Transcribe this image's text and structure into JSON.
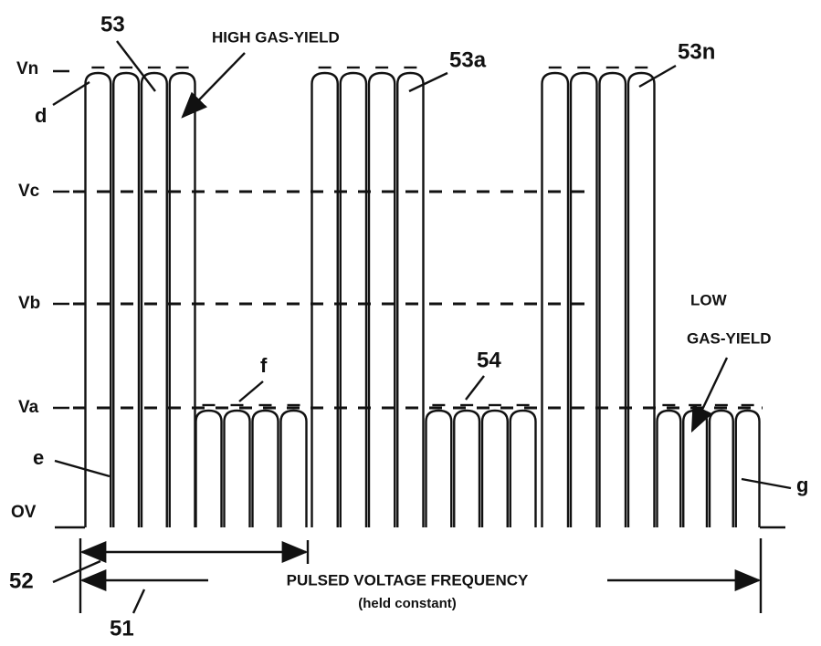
{
  "levels": [
    "Vn",
    "Vc",
    "Vb",
    "Va",
    "OV"
  ],
  "callouts": {
    "n53": "53",
    "n53a": "53a",
    "n53n": "53n",
    "n54": "54",
    "n52": "52",
    "n51": "51",
    "d": "d",
    "e": "e",
    "f": "f",
    "g": "g"
  },
  "high_label": "HIGH GAS-YIELD",
  "low_label": [
    "LOW",
    "GAS-YIELD"
  ],
  "frequency_label": "PULSED VOLTAGE FREQUENCY",
  "frequency_note": "(held constant)"
}
